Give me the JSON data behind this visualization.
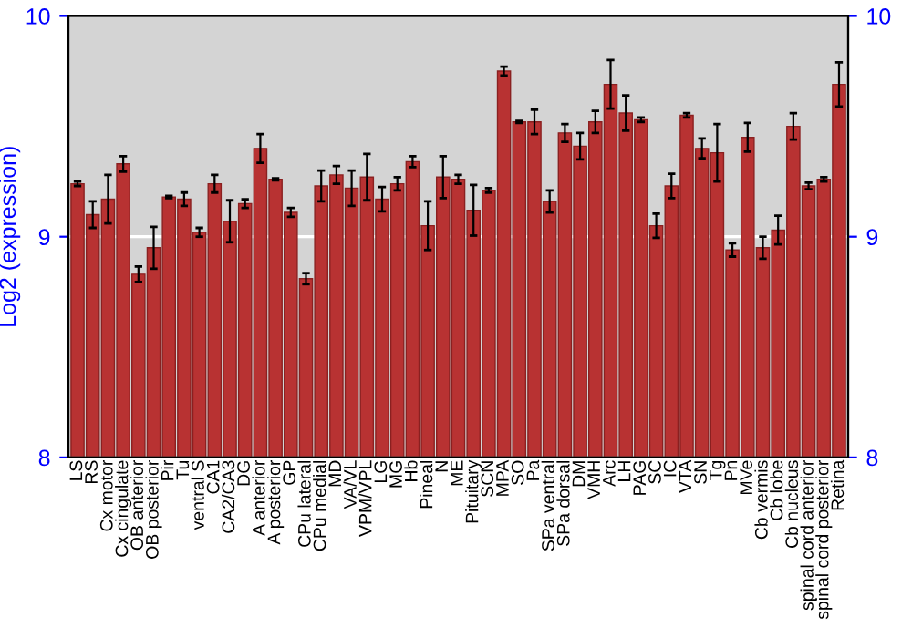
{
  "chart_data": {
    "type": "bar",
    "ylabel": "Log2 (expression)",
    "categories": [
      "LS",
      "RS",
      "Cx motor",
      "Cx cingulate",
      "OB anterior",
      "OB posterior",
      "Pir",
      "Tu",
      "ventral S",
      "CA1",
      "CA2/CA3",
      "DG",
      "A anterior",
      "A posterior",
      "GP",
      "CPu lateral",
      "CPu medial",
      "MD",
      "VA/VL",
      "VPM/VPL",
      "LG",
      "MG",
      "Hb",
      "Pineal",
      "N",
      "ME",
      "Pituitary",
      "SCN",
      "MPA",
      "SO",
      "Pa",
      "SPa ventral",
      "SPa dorsal",
      "DM",
      "VMH",
      "Arc",
      "LH",
      "PAG",
      "SC",
      "IC",
      "VTA",
      "SN",
      "Tg",
      "Pn",
      "MVe",
      "Cb vermis",
      "Cb lobe",
      "Cb nucleus",
      "spinal cord anterior",
      "spinal cord posterior",
      "Retina"
    ],
    "values": [
      9.24,
      9.1,
      9.17,
      9.33,
      8.83,
      8.95,
      9.18,
      9.17,
      9.02,
      9.24,
      9.07,
      9.15,
      9.4,
      9.26,
      9.11,
      8.81,
      9.23,
      9.28,
      9.22,
      9.27,
      9.17,
      9.24,
      9.34,
      9.05,
      9.27,
      9.26,
      9.12,
      9.21,
      9.75,
      9.52,
      9.52,
      9.16,
      9.47,
      9.41,
      9.52,
      9.69,
      9.56,
      9.53,
      9.05,
      9.23,
      9.55,
      9.4,
      9.38,
      8.94,
      9.45,
      8.95,
      9.03,
      9.5,
      9.23,
      9.26,
      9.69
    ],
    "errors": [
      0.01,
      0.06,
      0.11,
      0.035,
      0.035,
      0.095,
      0.005,
      0.03,
      0.02,
      0.04,
      0.095,
      0.02,
      0.065,
      0.005,
      0.02,
      0.025,
      0.07,
      0.04,
      0.08,
      0.105,
      0.055,
      0.03,
      0.025,
      0.11,
      0.095,
      0.02,
      0.115,
      0.01,
      0.02,
      0.005,
      0.055,
      0.05,
      0.04,
      0.06,
      0.05,
      0.11,
      0.08,
      0.01,
      0.055,
      0.055,
      0.01,
      0.045,
      0.13,
      0.03,
      0.065,
      0.05,
      0.065,
      0.06,
      0.015,
      0.01,
      0.1
    ],
    "color": "#b83232",
    "ylim": [
      8,
      10
    ],
    "yticks": [
      8,
      9,
      10
    ],
    "y2lim": [
      8,
      10
    ],
    "y2ticks": [
      8,
      9,
      10
    ],
    "ref_lines": [
      {
        "axis": "y",
        "value": 9,
        "color": "#ffffff"
      }
    ]
  }
}
